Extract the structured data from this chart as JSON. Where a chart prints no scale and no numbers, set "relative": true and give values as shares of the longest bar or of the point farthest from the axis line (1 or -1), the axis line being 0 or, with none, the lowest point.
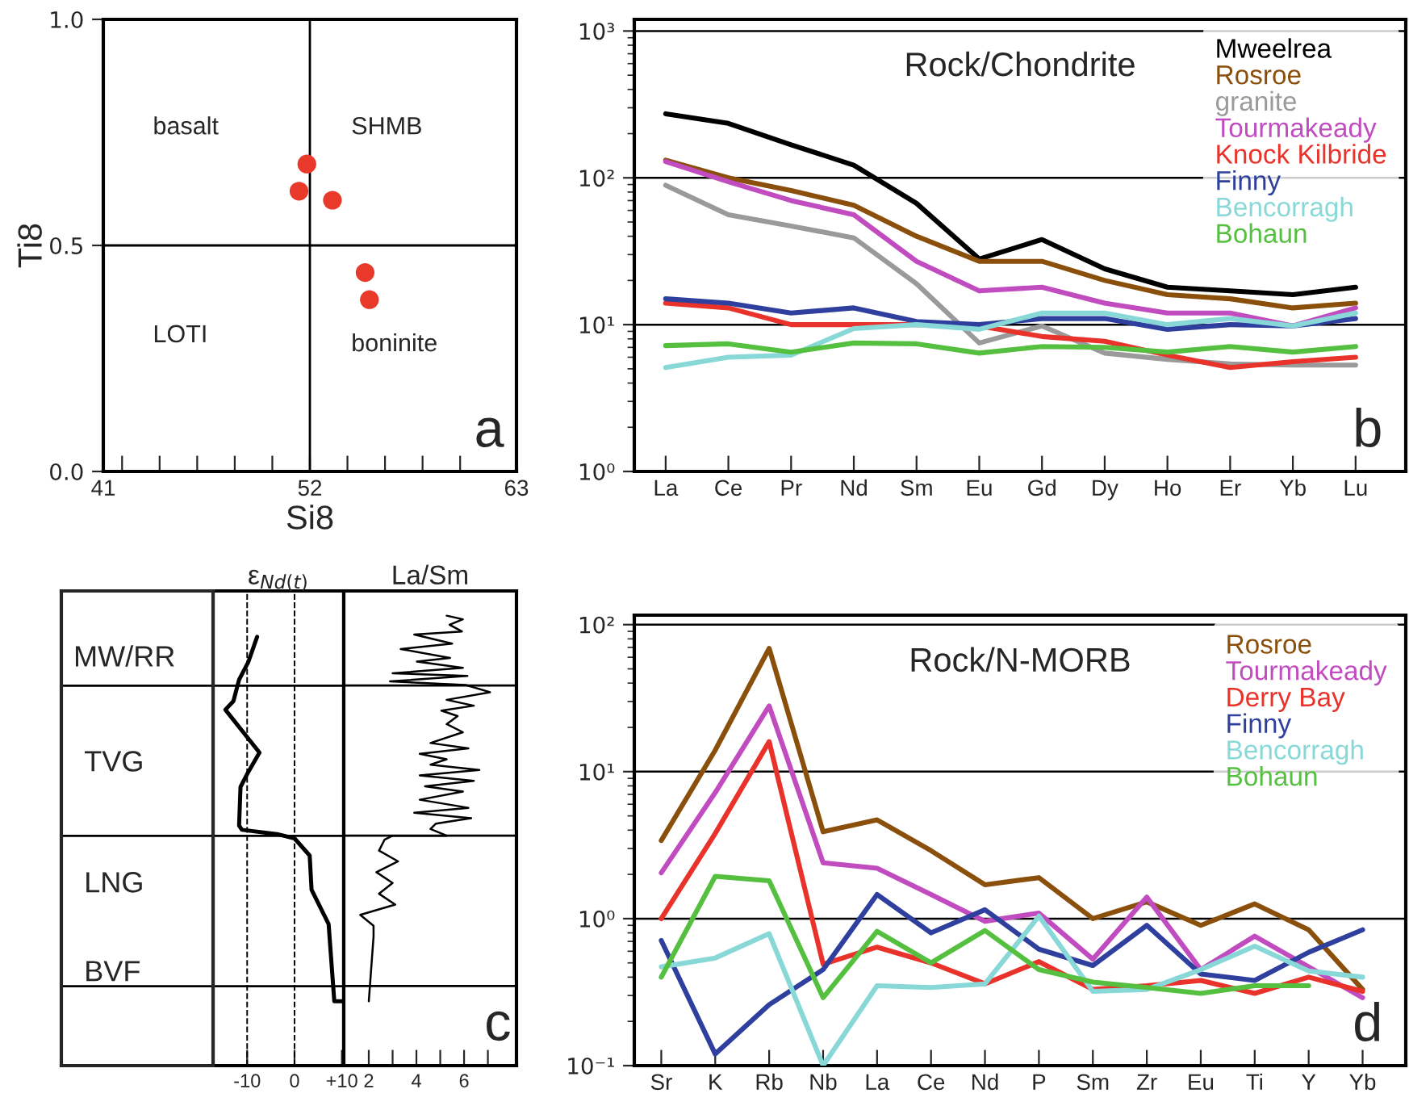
{
  "chart_data": [
    {
      "type": "scatter",
      "xlabel": "Si8",
      "ylabel": "Ti8",
      "x": [
        51.84,
        51.42,
        53.2,
        54.94,
        55.17
      ],
      "values": [
        0.68,
        0.62,
        0.6,
        0.44,
        0.38
      ],
      "color": "#e8392b",
      "marker": "circle",
      "xlim": [
        41,
        63
      ],
      "xticks": [
        41,
        {
          "value": 42,
          "label": null
        },
        {
          "value": 44,
          "label": null
        },
        {
          "value": 46,
          "label": null
        },
        {
          "value": 48,
          "label": null
        },
        {
          "value": 50,
          "label": null
        },
        52,
        {
          "value": 54,
          "label": null
        },
        {
          "value": 56,
          "label": null
        },
        {
          "value": 58,
          "label": null
        },
        {
          "value": 60,
          "label": null
        },
        63
      ],
      "ylim": [
        0,
        1
      ],
      "yticks": [
        {
          "value": 0,
          "label": "0.0"
        },
        {
          "value": 0.5,
          "label": "0.5"
        },
        {
          "value": 1,
          "label": "1.0"
        }
      ],
      "ref_lines": [
        {
          "axis": "x",
          "value": 52
        },
        {
          "axis": "y",
          "value": 0.5
        }
      ],
      "annotations": [
        "basalt",
        "SHMB",
        "LOTI",
        "boninite",
        "a"
      ]
    },
    {
      "type": "line",
      "title": "Rock/Chondrite",
      "categories": [
        "La",
        "Ce",
        "Pr",
        "Nd",
        "Sm",
        "Eu",
        "Gd",
        "Dy",
        "Ho",
        "Er",
        "Yb",
        "Lu"
      ],
      "series": [
        {
          "name": "Mweelrea",
          "color": "#000000",
          "values": [
            273,
            235,
            168,
            122,
            67,
            28,
            38,
            24,
            18,
            17,
            16,
            18
          ]
        },
        {
          "name": "Rosroe",
          "color": "#8b4f0c",
          "values": [
            132,
            100,
            82,
            65,
            40,
            27,
            27,
            20,
            16,
            15,
            13,
            14
          ]
        },
        {
          "name": "granite",
          "color": "#9a9a9a",
          "values": [
            89,
            56,
            47,
            39,
            19,
            7.5,
            9.8,
            6.4,
            5.8,
            5.4,
            5.3,
            5.3
          ]
        },
        {
          "name": "Tourmakeady",
          "color": "#c04cc0",
          "values": [
            129,
            94,
            70,
            56,
            27,
            17,
            18,
            14,
            12,
            12,
            9.8,
            13
          ]
        },
        {
          "name": "Knock Kilbride",
          "color": "#e8322a",
          "values": [
            14,
            13,
            10,
            10,
            10,
            9.8,
            8.3,
            7.7,
            6.2,
            5.1,
            5.6,
            6.0
          ]
        },
        {
          "name": "Finny",
          "color": "#2e3f9e",
          "values": [
            15,
            14,
            12,
            13,
            10.5,
            10,
            11,
            11,
            9.3,
            10,
            9.8,
            11
          ]
        },
        {
          "name": "Bencorragh",
          "color": "#88d8d8",
          "values": [
            5.1,
            6.0,
            6.2,
            9.4,
            10,
            9.3,
            12,
            12,
            10,
            11,
            9.8,
            12
          ]
        },
        {
          "name": "Bohaun",
          "color": "#55c040",
          "values": [
            7.2,
            7.4,
            6.5,
            7.5,
            7.4,
            6.4,
            7.1,
            7.0,
            6.5,
            7.1,
            6.5,
            7.1
          ]
        }
      ],
      "ylim": [
        1,
        1200
      ],
      "yticks": [
        {
          "value": 1,
          "label": "10⁰"
        },
        {
          "value": 10,
          "label": "10¹"
        },
        {
          "value": 100,
          "label": "10²"
        },
        {
          "value": 1000,
          "label": "10³"
        }
      ],
      "log": true,
      "grid": "y",
      "legend": "top right",
      "annotations": [
        "b"
      ]
    },
    {
      "type": "line",
      "title": "ε$_{Nd(t)}$",
      "relative": true,
      "tick_labels": "x",
      "series": [
        {
          "color": "#000000",
          "x": [
            -7.9,
            -9.8,
            -11.7,
            -12.9,
            -14.6,
            -7.4,
            -10,
            -11.4,
            -11.7,
            -11.1,
            -3.7,
            0,
            3.2,
            3.6,
            7.2,
            8.4,
            10.2
          ],
          "values": [
            1,
            0.94,
            0.9,
            0.85,
            0.83,
            0.73,
            0.68,
            0.65,
            0.56,
            0.55,
            0.54,
            0.53,
            0.49,
            0.41,
            0.33,
            0.15,
            0.15
          ]
        }
      ],
      "xlim": [
        -17.2,
        10.4
      ],
      "xticks": [
        {
          "value": -10,
          "label": "-10"
        },
        0,
        {
          "value": 10,
          "label": "+10"
        }
      ],
      "ref_lines": [
        {
          "axis": "x",
          "value": -10,
          "line_style": "dashed"
        },
        {
          "axis": "x",
          "value": 0,
          "line_style": "dashed"
        },
        {
          "axis": "y",
          "value": 0.886
        },
        {
          "axis": "y",
          "value": 0.536
        },
        {
          "axis": "y",
          "value": 0.185
        }
      ],
      "annotations": [
        "MW/RR",
        "TVG",
        "LNG",
        "BVF"
      ]
    },
    {
      "type": "line",
      "title": "La/Sm",
      "relative": true,
      "tick_labels": "x",
      "series": [
        {
          "color": "#000000",
          "x": [
            5.27,
            5.95,
            5.39,
            5.91,
            3.91,
            5.5,
            3.34,
            5.41,
            4.02,
            5.95,
            3.0,
            6.14,
            2.89,
            6.07,
            7.09,
            5.27,
            6.41,
            5.05,
            5.73,
            5.27,
            5.95,
            4.59,
            6.18,
            4.14,
            5.27,
            4.59,
            6.64,
            4.14,
            6.41,
            4.36,
            5.95,
            4.14,
            6.18,
            3.91,
            6.3,
            4.82,
            4.59,
            5.27,
            3.0,
            2.66,
            2.43,
            3.23,
            2.32,
            3.0,
            2.43,
            3.11,
            1.64,
            2.2,
            2.2,
            2.0
          ],
          "values": [
            1.0,
            0.992,
            0.98,
            0.965,
            0.958,
            0.938,
            0.926,
            0.906,
            0.898,
            0.884,
            0.872,
            0.866,
            0.854,
            0.846,
            0.83,
            0.813,
            0.8,
            0.789,
            0.777,
            0.759,
            0.741,
            0.717,
            0.705,
            0.693,
            0.681,
            0.669,
            0.657,
            0.645,
            0.633,
            0.621,
            0.609,
            0.591,
            0.573,
            0.562,
            0.55,
            0.538,
            0.526,
            0.511,
            0.511,
            0.502,
            0.478,
            0.454,
            0.43,
            0.406,
            0.382,
            0.358,
            0.335,
            0.311,
            0.287,
            0.143
          ]
        }
      ],
      "xlim": [
        0.95,
        8.2
      ],
      "xticks": [
        2,
        {
          "value": 3,
          "label": null
        },
        4,
        {
          "value": 5,
          "label": null
        },
        6,
        {
          "value": 7,
          "label": null
        }
      ],
      "ref_lines": [
        {
          "axis": "y",
          "value": 0.845
        },
        {
          "axis": "y",
          "value": 0.511
        },
        {
          "axis": "y",
          "value": 0.177
        }
      ],
      "annotations": [
        "c"
      ]
    },
    {
      "type": "line",
      "title": "Rock/N-MORB",
      "categories": [
        "Sr",
        "K",
        "Rb",
        "Nb",
        "La",
        "Ce",
        "Nd",
        "P",
        "Sm",
        "Zr",
        "Eu",
        "Ti",
        "Y",
        "Yb"
      ],
      "series": [
        {
          "name": "Rosroe",
          "color": "#8b4f0c",
          "values": [
            3.4,
            14,
            69,
            3.9,
            4.7,
            2.9,
            1.7,
            1.9,
            1.0,
            1.3,
            0.9,
            1.26,
            0.84,
            0.33
          ]
        },
        {
          "name": "Tourmakeady",
          "color": "#c04cc0",
          "values": [
            2.05,
            7.2,
            28,
            2.4,
            2.2,
            1.46,
            0.96,
            1.09,
            0.53,
            1.4,
            0.45,
            0.76,
            0.47,
            0.29
          ]
        },
        {
          "name": "Derry Bay",
          "color": "#e8322a",
          "values": [
            1.0,
            3.8,
            16,
            0.49,
            0.64,
            0.5,
            0.36,
            0.51,
            0.33,
            0.35,
            0.38,
            0.31,
            0.4,
            0.32
          ]
        },
        {
          "name": "Finny",
          "color": "#2e3f9e",
          "values": [
            0.71,
            0.12,
            0.26,
            0.45,
            1.46,
            0.8,
            1.15,
            0.62,
            0.48,
            0.9,
            0.42,
            0.38,
            0.59,
            0.84
          ]
        },
        {
          "name": "Bencorragh",
          "color": "#88d8d8",
          "values": [
            0.47,
            0.54,
            0.79,
            0.1,
            0.35,
            0.34,
            0.36,
            1.04,
            0.32,
            0.33,
            0.45,
            0.65,
            0.44,
            0.4
          ]
        },
        {
          "name": "Bohaun",
          "color": "#55c040",
          "values": [
            0.4,
            1.94,
            1.81,
            0.29,
            0.82,
            0.5,
            0.83,
            0.45,
            0.37,
            0.34,
            0.31,
            0.35,
            0.35,
            null
          ]
        }
      ],
      "ylim": [
        0.1,
        116
      ],
      "yticks": [
        {
          "value": 0.1,
          "label": "10⁻¹"
        },
        {
          "value": 1,
          "label": "10⁰"
        },
        {
          "value": 10,
          "label": "10¹"
        },
        {
          "value": 100,
          "label": "10²"
        }
      ],
      "log": true,
      "grid": "y",
      "legend": "top right",
      "annotations": [
        "d"
      ]
    }
  ]
}
